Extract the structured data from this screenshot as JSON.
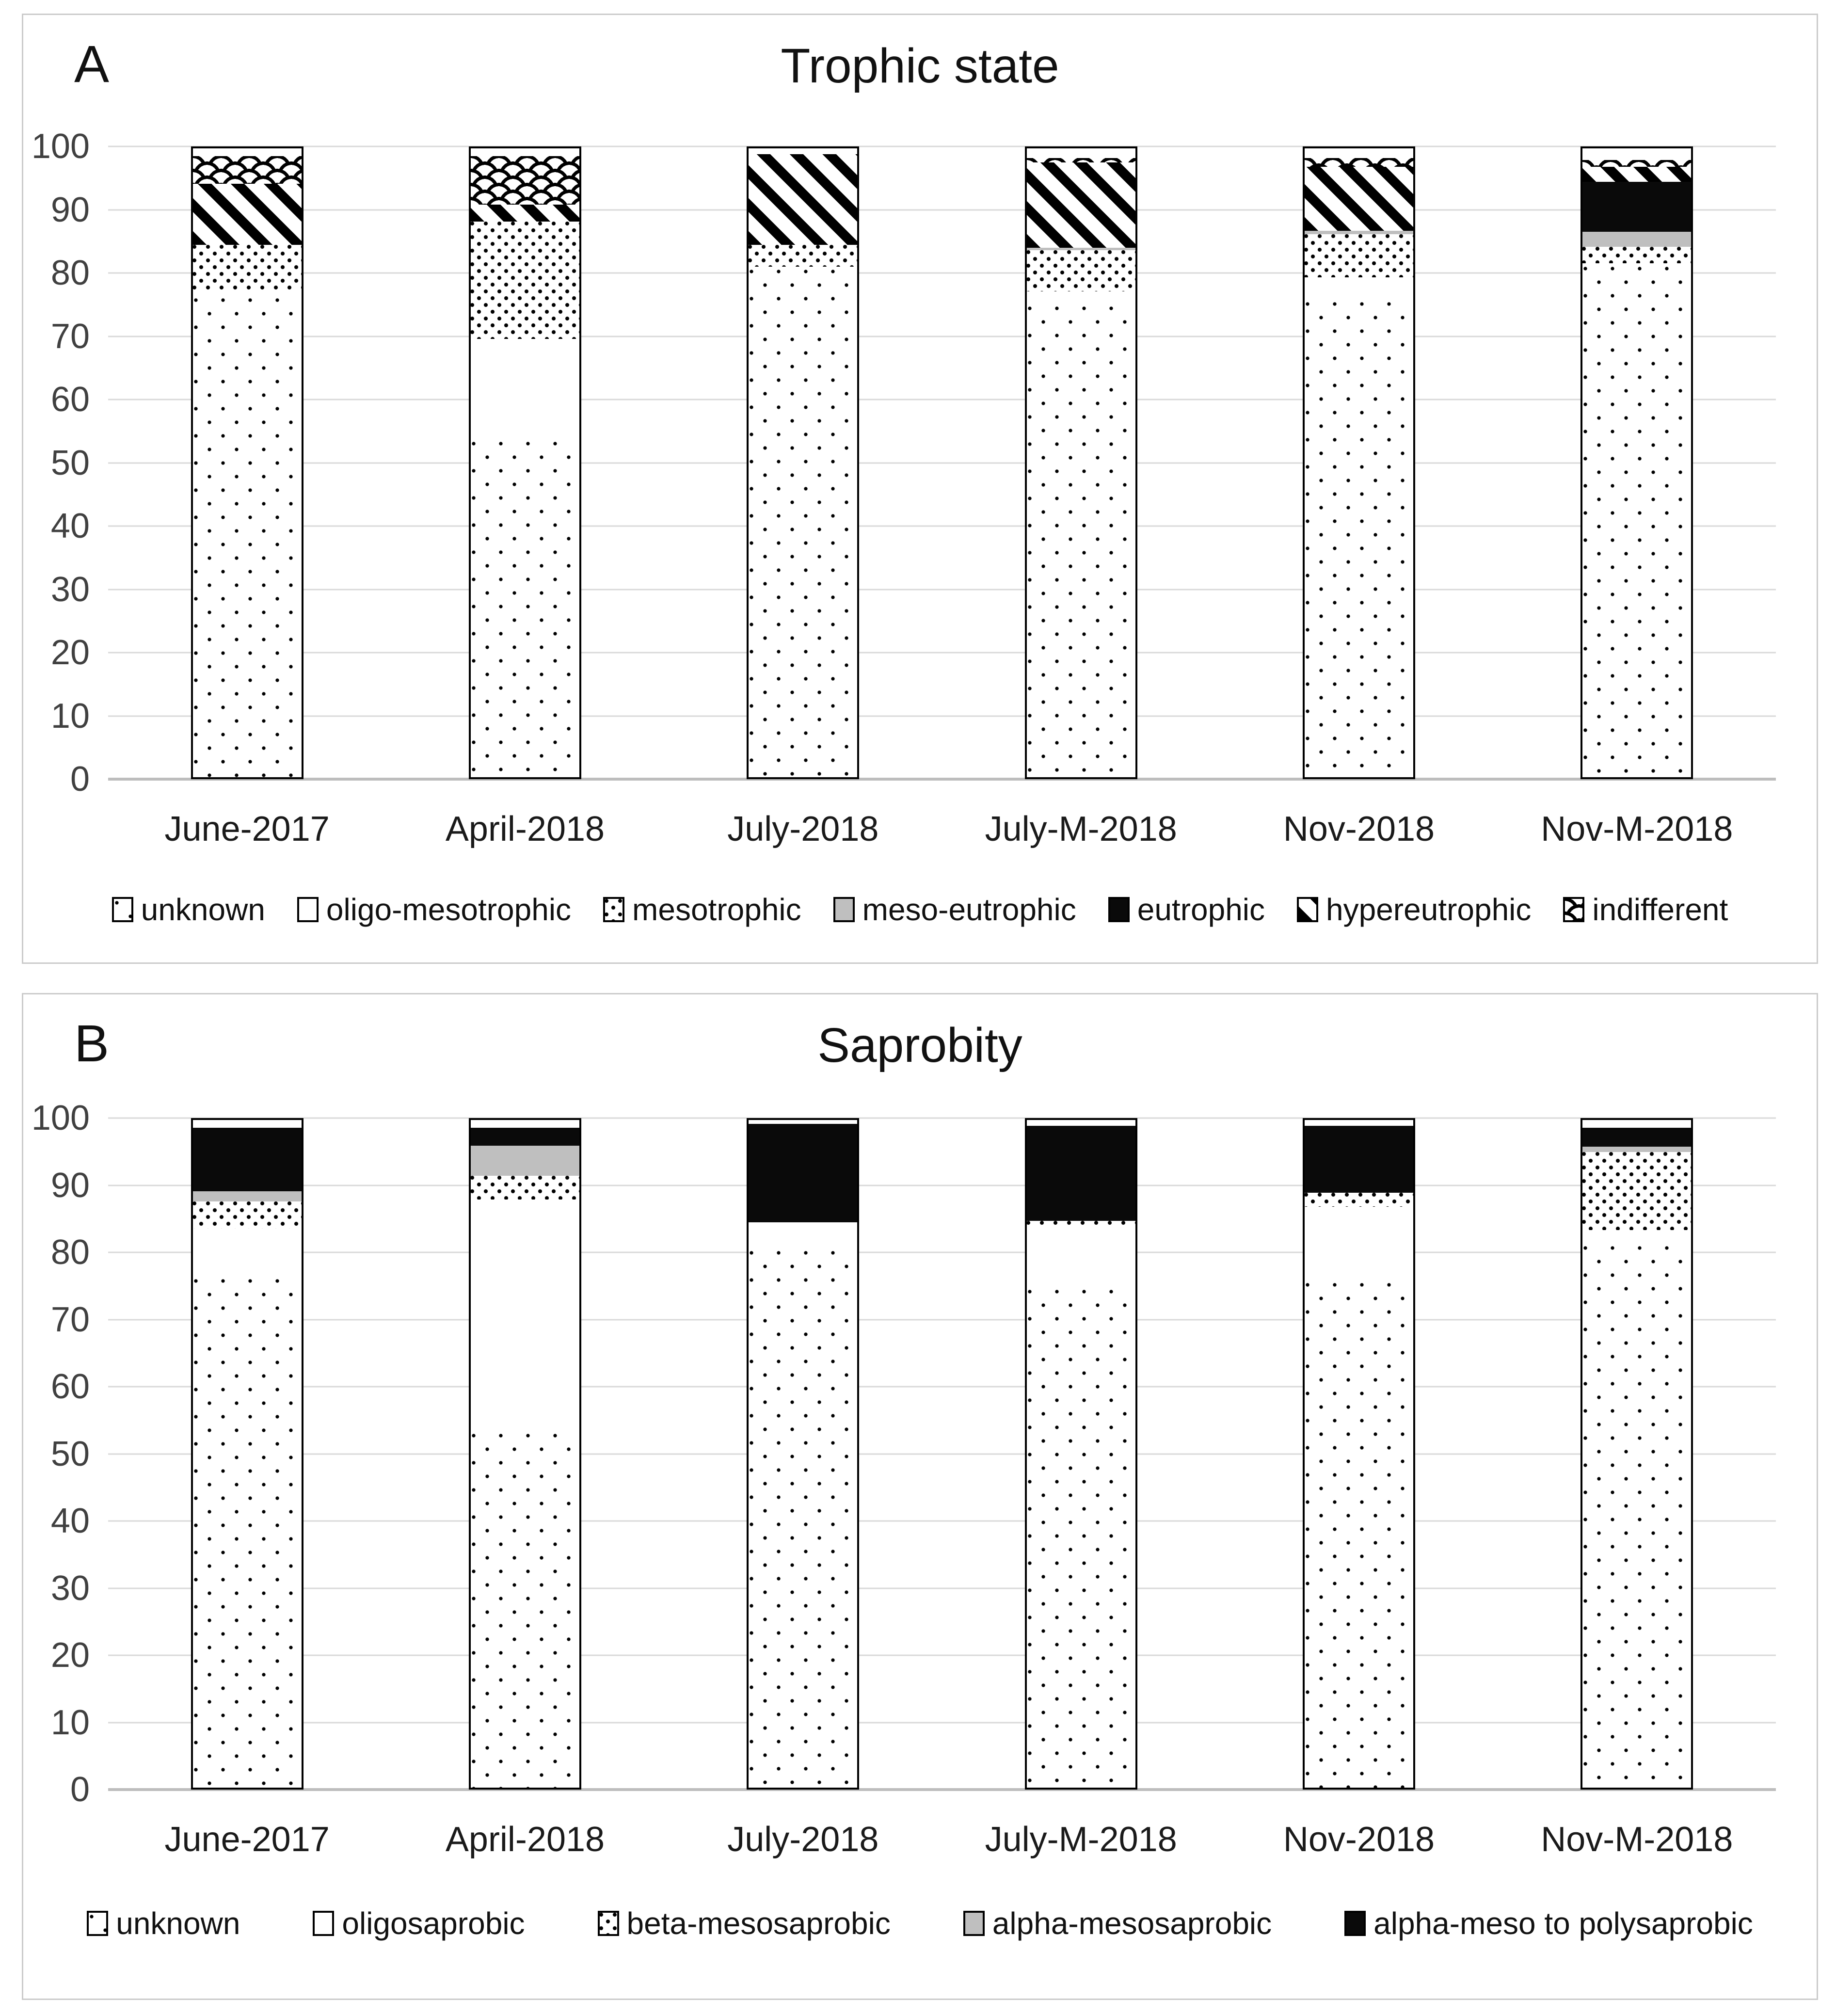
{
  "colors": {
    "pattern_ink": "#000000",
    "segment_gray": "#bfbfbf",
    "gridline": "#d9d9d9",
    "zero_line": "#bdbdbd",
    "panel_border": "#cbcbcb",
    "tick_label_color": "#404040"
  },
  "chart_data": [
    {
      "type": "bar",
      "subtype": "stacked-100-percent",
      "label": "A",
      "title": "Trophic state",
      "categories": [
        "June-2017",
        "April-2018",
        "July-2018",
        "July-M-2018",
        "Nov-2018",
        "Nov-M-2018"
      ],
      "y_ticks": [
        0,
        10,
        20,
        30,
        40,
        50,
        60,
        70,
        80,
        90,
        100
      ],
      "ylim": [
        0,
        100
      ],
      "grid": true,
      "legend_position": "bottom",
      "series": [
        {
          "name": "unknown",
          "pattern": "dots-sparse",
          "values": [
            76.5,
            53.7,
            81,
            75.2,
            75.9,
            81.5
          ]
        },
        {
          "name": "oligo-mesotrophic",
          "pattern": "plain-white",
          "values": [
            1,
            16.3,
            0.5,
            2.4,
            3.9,
            0.5
          ]
        },
        {
          "name": "mesotrophic",
          "pattern": "dots-dense",
          "values": [
            7.8,
            19,
            3.8,
            6.8,
            7.2,
            3
          ]
        },
        {
          "name": "meso-eutrophic",
          "pattern": "solid-gray",
          "values": [
            0,
            0,
            0,
            0.7,
            0.8,
            2.7
          ]
        },
        {
          "name": "eutrophic",
          "pattern": "solid-black",
          "values": [
            0,
            0,
            0,
            0,
            0,
            8.2
          ]
        },
        {
          "name": "hypereutrophic",
          "pattern": "diagonal-stripes",
          "values": [
            10,
            3,
            14.7,
            13.9,
            10.5,
            2.7
          ]
        },
        {
          "name": "indifferent",
          "pattern": "fish-scales",
          "values": [
            4.7,
            8,
            0,
            1,
            1.7,
            1.4
          ]
        }
      ]
    },
    {
      "type": "bar",
      "subtype": "stacked-100-percent",
      "label": "B",
      "title": "Saprobity",
      "categories": [
        "June-2017",
        "April-2018",
        "July-2018",
        "July-M-2018",
        "Nov-2018",
        "Nov-M-2018"
      ],
      "y_ticks": [
        0,
        10,
        20,
        30,
        40,
        50,
        60,
        70,
        80,
        90,
        100
      ],
      "ylim": [
        0,
        100
      ],
      "grid": true,
      "legend_position": "bottom",
      "series": [
        {
          "name": "unknown",
          "pattern": "dots-sparse",
          "values": [
            76.5,
            53.3,
            80.7,
            74.9,
            75.9,
            81.4
          ]
        },
        {
          "name": "oligosaprobic",
          "pattern": "plain-white",
          "values": [
            7.5,
            35.1,
            4.3,
            9.6,
            11.4,
            2.4
          ]
        },
        {
          "name": "beta-mesosaprobic",
          "pattern": "dots-dense",
          "values": [
            4.4,
            3.8,
            0,
            1,
            2.4,
            12
          ]
        },
        {
          "name": "alpha-mesosaprobic",
          "pattern": "solid-gray",
          "values": [
            1.8,
            4.8,
            0,
            0,
            0,
            1.1
          ]
        },
        {
          "name": "alpha-meso to polysaprobic",
          "pattern": "solid-black",
          "values": [
            9.8,
            3,
            15,
            14.5,
            10.3,
            3.1
          ]
        }
      ]
    }
  ]
}
